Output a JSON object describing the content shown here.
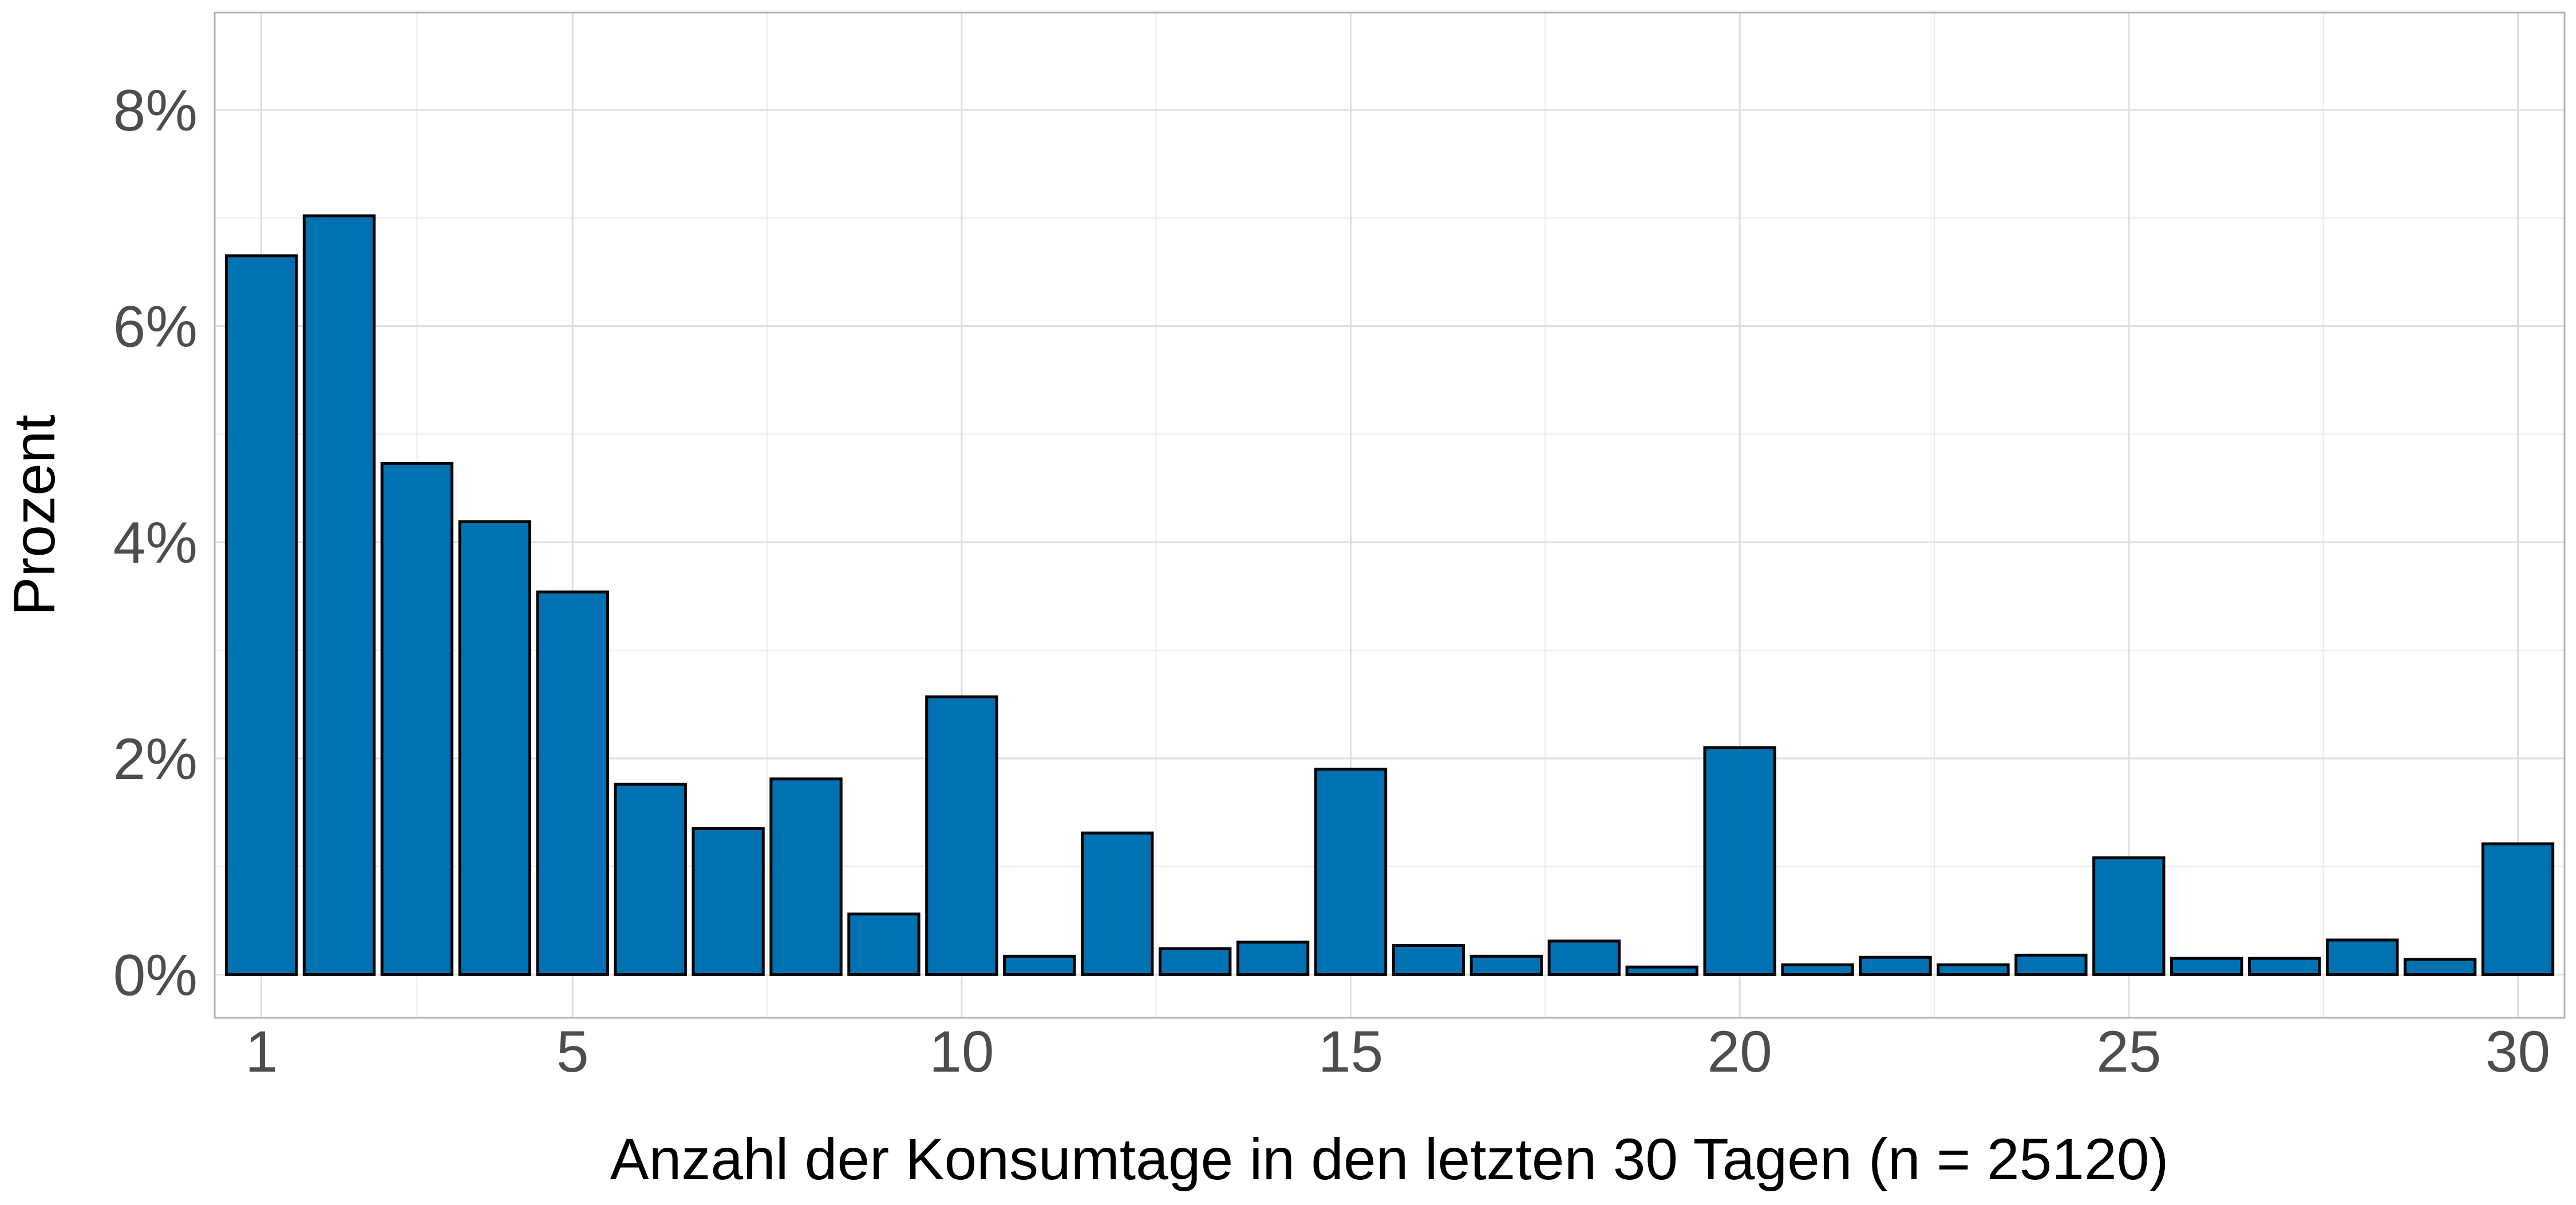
{
  "chart_data": {
    "type": "bar",
    "title": "",
    "xlabel": "Anzahl der Konsumtage in den letzten 30 Tagen (n = 25120)",
    "ylabel": "Prozent",
    "x": [
      1,
      2,
      3,
      4,
      5,
      6,
      7,
      8,
      9,
      10,
      11,
      12,
      13,
      14,
      15,
      16,
      17,
      18,
      19,
      20,
      21,
      22,
      23,
      24,
      25,
      26,
      27,
      28,
      29,
      30
    ],
    "values": [
      6.65,
      7.02,
      4.73,
      4.19,
      3.54,
      1.76,
      1.35,
      1.81,
      0.56,
      2.57,
      0.17,
      1.31,
      0.24,
      0.3,
      1.9,
      0.27,
      0.17,
      0.31,
      0.07,
      2.1,
      0.09,
      0.16,
      0.09,
      0.18,
      1.08,
      0.15,
      0.15,
      0.32,
      0.14,
      1.21
    ],
    "x_ticks": [
      1,
      5,
      10,
      15,
      20,
      25,
      30
    ],
    "x_tick_labels": [
      "1",
      "5",
      "10",
      "15",
      "20",
      "25",
      "30"
    ],
    "y_ticks": [
      0,
      2,
      4,
      6,
      8
    ],
    "y_tick_labels": [
      "0%",
      "2%",
      "4%",
      "6%",
      "8%"
    ],
    "xlim": [
      0.4,
      30.6
    ],
    "ylim": [
      -0.4,
      8.9
    ],
    "grid": true,
    "legend": "none",
    "colors": {
      "bar_fill": "#0072b2",
      "bar_outline": "#000000"
    }
  }
}
